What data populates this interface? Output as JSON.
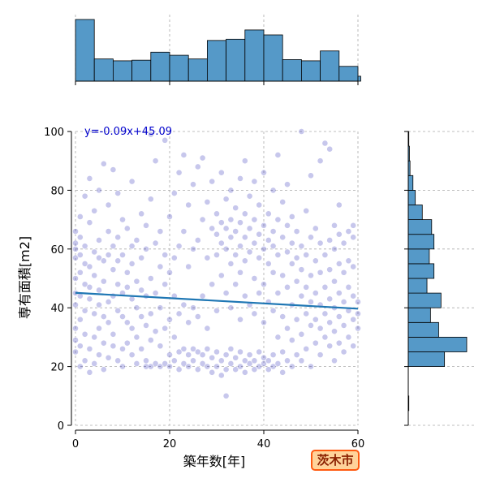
{
  "chart_data": {
    "type": "scatter",
    "xlabel": "築年数[年]",
    "ylabel": "専有面積[m2]",
    "xlim": [
      0,
      60
    ],
    "ylim": [
      0,
      100
    ],
    "xticks": [
      "0",
      "20",
      "40",
      "60"
    ],
    "yticks": [
      "0",
      "20",
      "40",
      "60",
      "80",
      "100"
    ],
    "grid": true,
    "regression": {
      "label": "y=-0.09x+45.09",
      "slope": -0.09,
      "intercept": 45.09,
      "color": "#1f77b4"
    },
    "point_color": "#0000aa",
    "hist_color": "#5599c8",
    "points": [
      [
        0,
        25
      ],
      [
        0,
        29
      ],
      [
        0,
        33
      ],
      [
        0,
        41
      ],
      [
        0,
        45
      ],
      [
        0,
        50
      ],
      [
        0,
        57
      ],
      [
        0,
        60
      ],
      [
        0,
        62
      ],
      [
        0,
        66
      ],
      [
        1,
        20
      ],
      [
        1,
        27
      ],
      [
        1,
        36
      ],
      [
        1,
        44
      ],
      [
        1,
        52
      ],
      [
        1,
        58
      ],
      [
        1,
        64
      ],
      [
        1,
        71
      ],
      [
        2,
        22
      ],
      [
        2,
        31
      ],
      [
        2,
        39
      ],
      [
        2,
        48
      ],
      [
        2,
        55
      ],
      [
        2,
        61
      ],
      [
        2,
        78
      ],
      [
        3,
        18
      ],
      [
        3,
        26
      ],
      [
        3,
        43
      ],
      [
        3,
        47
      ],
      [
        3,
        54
      ],
      [
        3,
        69
      ],
      [
        3,
        84
      ],
      [
        4,
        21
      ],
      [
        4,
        30
      ],
      [
        4,
        38
      ],
      [
        4,
        51
      ],
      [
        4,
        59
      ],
      [
        4,
        73
      ],
      [
        5,
        24
      ],
      [
        5,
        33
      ],
      [
        5,
        41
      ],
      [
        5,
        46
      ],
      [
        5,
        57
      ],
      [
        5,
        63
      ],
      [
        5,
        80
      ],
      [
        6,
        19
      ],
      [
        6,
        28
      ],
      [
        6,
        37
      ],
      [
        6,
        49
      ],
      [
        6,
        56
      ],
      [
        6,
        89
      ],
      [
        7,
        23
      ],
      [
        7,
        35
      ],
      [
        7,
        42
      ],
      [
        7,
        58
      ],
      [
        7,
        66
      ],
      [
        7,
        75
      ],
      [
        8,
        27
      ],
      [
        8,
        31
      ],
      [
        8,
        44
      ],
      [
        8,
        53
      ],
      [
        8,
        61
      ],
      [
        8,
        87
      ],
      [
        9,
        22
      ],
      [
        9,
        39
      ],
      [
        9,
        48
      ],
      [
        9,
        56
      ],
      [
        9,
        64
      ],
      [
        9,
        79
      ],
      [
        10,
        20
      ],
      [
        10,
        26
      ],
      [
        10,
        37
      ],
      [
        10,
        45
      ],
      [
        10,
        58
      ],
      [
        10,
        70
      ],
      [
        11,
        28
      ],
      [
        11,
        35
      ],
      [
        11,
        47
      ],
      [
        11,
        52
      ],
      [
        11,
        67
      ],
      [
        12,
        24
      ],
      [
        12,
        33
      ],
      [
        12,
        43
      ],
      [
        12,
        55
      ],
      [
        12,
        61
      ],
      [
        12,
        83
      ],
      [
        13,
        21
      ],
      [
        13,
        30
      ],
      [
        13,
        40
      ],
      [
        13,
        49
      ],
      [
        13,
        63
      ],
      [
        14,
        26
      ],
      [
        14,
        37
      ],
      [
        14,
        46
      ],
      [
        14,
        57
      ],
      [
        14,
        72
      ],
      [
        15,
        20
      ],
      [
        15,
        22
      ],
      [
        15,
        34
      ],
      [
        15,
        44
      ],
      [
        15,
        60
      ],
      [
        15,
        68
      ],
      [
        16,
        20
      ],
      [
        16,
        29
      ],
      [
        16,
        38
      ],
      [
        16,
        50
      ],
      [
        16,
        77
      ],
      [
        16,
        99
      ],
      [
        17,
        21
      ],
      [
        17,
        32
      ],
      [
        17,
        45
      ],
      [
        17,
        62
      ],
      [
        17,
        90
      ],
      [
        18,
        20
      ],
      [
        18,
        27
      ],
      [
        18,
        40
      ],
      [
        18,
        54
      ],
      [
        18,
        66
      ],
      [
        19,
        21
      ],
      [
        19,
        33
      ],
      [
        19,
        48
      ],
      [
        19,
        58
      ],
      [
        19,
        97
      ],
      [
        20,
        20
      ],
      [
        20,
        24
      ],
      [
        20,
        36
      ],
      [
        20,
        52
      ],
      [
        20,
        71
      ],
      [
        21,
        22
      ],
      [
        21,
        30
      ],
      [
        21,
        44
      ],
      [
        21,
        57
      ],
      [
        21,
        79
      ],
      [
        22,
        25
      ],
      [
        22,
        19
      ],
      [
        22,
        38
      ],
      [
        22,
        61
      ],
      [
        22,
        86
      ],
      [
        23,
        21
      ],
      [
        23,
        26
      ],
      [
        23,
        41
      ],
      [
        23,
        66
      ],
      [
        23,
        92
      ],
      [
        24,
        20
      ],
      [
        24,
        24
      ],
      [
        24,
        35
      ],
      [
        24,
        54
      ],
      [
        24,
        75
      ],
      [
        25,
        22
      ],
      [
        25,
        26
      ],
      [
        25,
        40
      ],
      [
        25,
        60
      ],
      [
        25,
        82
      ],
      [
        26,
        19
      ],
      [
        26,
        25
      ],
      [
        26,
        37
      ],
      [
        26,
        63
      ],
      [
        26,
        88
      ],
      [
        27,
        21
      ],
      [
        27,
        24
      ],
      [
        27,
        44
      ],
      [
        27,
        70
      ],
      [
        27,
        91
      ],
      [
        28,
        20
      ],
      [
        28,
        26
      ],
      [
        28,
        33
      ],
      [
        28,
        57
      ],
      [
        28,
        76
      ],
      [
        29,
        18
      ],
      [
        29,
        23
      ],
      [
        29,
        48
      ],
      [
        29,
        67
      ],
      [
        29,
        83
      ],
      [
        30,
        20
      ],
      [
        30,
        25
      ],
      [
        30,
        39
      ],
      [
        30,
        58
      ],
      [
        30,
        65
      ],
      [
        30,
        72
      ],
      [
        31,
        17
      ],
      [
        31,
        22
      ],
      [
        31,
        51
      ],
      [
        31,
        62
      ],
      [
        31,
        69
      ],
      [
        31,
        86
      ],
      [
        32,
        10
      ],
      [
        32,
        19
      ],
      [
        32,
        24
      ],
      [
        32,
        45
      ],
      [
        32,
        60
      ],
      [
        32,
        67
      ],
      [
        32,
        77
      ],
      [
        33,
        21
      ],
      [
        33,
        26
      ],
      [
        33,
        40
      ],
      [
        33,
        55
      ],
      [
        33,
        64
      ],
      [
        33,
        70
      ],
      [
        33,
        80
      ],
      [
        34,
        19
      ],
      [
        34,
        23
      ],
      [
        34,
        48
      ],
      [
        34,
        58
      ],
      [
        34,
        66
      ],
      [
        34,
        74
      ],
      [
        35,
        20
      ],
      [
        35,
        25
      ],
      [
        35,
        36
      ],
      [
        35,
        52
      ],
      [
        35,
        61
      ],
      [
        35,
        69
      ],
      [
        35,
        84
      ],
      [
        36,
        18
      ],
      [
        36,
        22
      ],
      [
        36,
        44
      ],
      [
        36,
        56
      ],
      [
        36,
        64
      ],
      [
        36,
        72
      ],
      [
        36,
        90
      ],
      [
        37,
        21
      ],
      [
        37,
        24
      ],
      [
        37,
        41
      ],
      [
        37,
        59
      ],
      [
        37,
        67
      ],
      [
        37,
        78
      ],
      [
        38,
        19
      ],
      [
        38,
        22
      ],
      [
        38,
        38
      ],
      [
        38,
        50
      ],
      [
        38,
        62
      ],
      [
        38,
        70
      ],
      [
        38,
        83
      ],
      [
        39,
        20
      ],
      [
        39,
        25
      ],
      [
        39,
        45
      ],
      [
        39,
        57
      ],
      [
        39,
        65
      ],
      [
        39,
        75
      ],
      [
        40,
        21
      ],
      [
        40,
        23
      ],
      [
        40,
        35
      ],
      [
        40,
        48
      ],
      [
        40,
        60
      ],
      [
        40,
        68
      ],
      [
        40,
        86
      ],
      [
        41,
        19
      ],
      [
        41,
        22
      ],
      [
        41,
        42
      ],
      [
        41,
        55
      ],
      [
        41,
        63
      ],
      [
        41,
        72
      ],
      [
        42,
        20
      ],
      [
        42,
        24
      ],
      [
        42,
        39
      ],
      [
        42,
        52
      ],
      [
        42,
        61
      ],
      [
        42,
        66
      ],
      [
        42,
        80
      ],
      [
        43,
        21
      ],
      [
        43,
        30
      ],
      [
        43,
        45
      ],
      [
        43,
        58
      ],
      [
        43,
        70
      ],
      [
        43,
        92
      ],
      [
        44,
        18
      ],
      [
        44,
        25
      ],
      [
        44,
        37
      ],
      [
        44,
        51
      ],
      [
        44,
        64
      ],
      [
        44,
        76
      ],
      [
        45,
        22
      ],
      [
        45,
        33
      ],
      [
        45,
        47
      ],
      [
        45,
        59
      ],
      [
        45,
        68
      ],
      [
        45,
        82
      ],
      [
        46,
        20
      ],
      [
        46,
        29
      ],
      [
        46,
        41
      ],
      [
        46,
        55
      ],
      [
        46,
        62
      ],
      [
        46,
        71
      ],
      [
        47,
        24
      ],
      [
        47,
        36
      ],
      [
        47,
        49
      ],
      [
        47,
        57
      ],
      [
        47,
        66
      ],
      [
        48,
        22
      ],
      [
        48,
        31
      ],
      [
        48,
        44
      ],
      [
        48,
        53
      ],
      [
        48,
        61
      ],
      [
        48,
        100
      ],
      [
        49,
        26
      ],
      [
        49,
        38
      ],
      [
        49,
        47
      ],
      [
        49,
        58
      ],
      [
        49,
        73
      ],
      [
        50,
        20
      ],
      [
        50,
        34
      ],
      [
        50,
        42
      ],
      [
        50,
        51
      ],
      [
        50,
        64
      ],
      [
        50,
        85
      ],
      [
        51,
        28
      ],
      [
        51,
        36
      ],
      [
        51,
        45
      ],
      [
        51,
        56
      ],
      [
        51,
        67
      ],
      [
        52,
        24
      ],
      [
        52,
        33
      ],
      [
        52,
        41
      ],
      [
        52,
        52
      ],
      [
        52,
        62
      ],
      [
        52,
        90
      ],
      [
        53,
        30
      ],
      [
        53,
        38
      ],
      [
        53,
        47
      ],
      [
        53,
        58
      ],
      [
        53,
        96
      ],
      [
        54,
        27
      ],
      [
        54,
        35
      ],
      [
        54,
        43
      ],
      [
        54,
        53
      ],
      [
        54,
        63
      ],
      [
        54,
        94
      ],
      [
        55,
        22
      ],
      [
        55,
        32
      ],
      [
        55,
        40
      ],
      [
        55,
        49
      ],
      [
        55,
        60
      ],
      [
        55,
        68
      ],
      [
        56,
        28
      ],
      [
        56,
        37
      ],
      [
        56,
        45
      ],
      [
        56,
        55
      ],
      [
        56,
        65
      ],
      [
        56,
        75
      ],
      [
        57,
        25
      ],
      [
        57,
        34
      ],
      [
        57,
        42
      ],
      [
        57,
        52
      ],
      [
        57,
        62
      ],
      [
        58,
        30
      ],
      [
        58,
        39
      ],
      [
        58,
        47
      ],
      [
        58,
        56
      ],
      [
        58,
        66
      ],
      [
        59,
        27
      ],
      [
        59,
        36
      ],
      [
        59,
        44
      ],
      [
        59,
        54
      ],
      [
        59,
        64
      ],
      [
        59,
        68
      ],
      [
        60,
        33
      ],
      [
        60,
        38
      ],
      [
        60,
        42
      ]
    ],
    "x_hist": {
      "bin_width": 4,
      "bins": [
        0,
        4,
        8,
        12,
        16,
        20,
        24,
        28,
        32,
        36,
        40,
        44,
        48,
        52,
        56,
        60
      ],
      "counts": [
        100,
        36,
        33,
        34,
        47,
        42,
        36,
        66,
        68,
        83,
        75,
        35,
        33,
        49,
        24,
        8
      ]
    },
    "y_hist": {
      "bin_width": 5,
      "bins": [
        0,
        5,
        10,
        15,
        20,
        25,
        30,
        35,
        40,
        45,
        50,
        55,
        60,
        65,
        70,
        75,
        80,
        85,
        90,
        95,
        100
      ],
      "counts": [
        0,
        1,
        0,
        0,
        62,
        100,
        52,
        38,
        56,
        32,
        44,
        36,
        44,
        40,
        24,
        12,
        8,
        3,
        2,
        1
      ]
    }
  },
  "badge": {
    "label": "茨木市",
    "color": "#ff5a10",
    "fill": "#ffd39a"
  }
}
